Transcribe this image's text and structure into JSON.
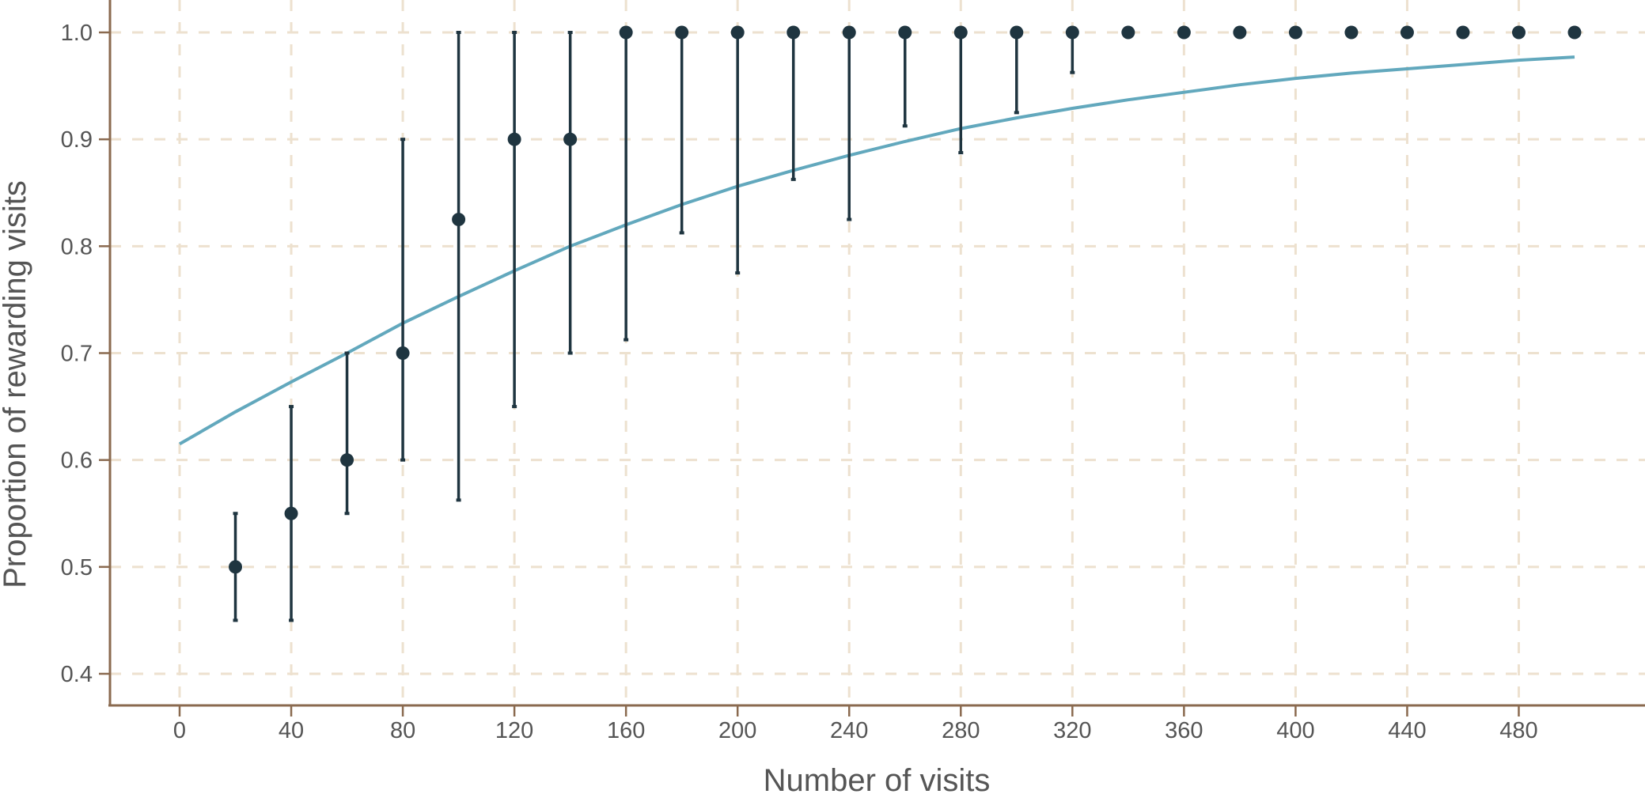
{
  "chart_data": {
    "type": "scatter",
    "title": "",
    "xlabel": "Number of visits",
    "ylabel": "Proportion of rewarding visits",
    "xlim": [
      -13,
      520
    ],
    "ylim": [
      0.37,
      1.0
    ],
    "x_ticks": [
      0,
      40,
      80,
      120,
      160,
      200,
      240,
      280,
      320,
      360,
      400,
      440,
      480
    ],
    "x_tick_labels": [
      "0",
      "40",
      "80",
      "120",
      "160",
      "200",
      "240",
      "280",
      "320",
      "360",
      "400",
      "440",
      "480"
    ],
    "y_ticks": [
      0.4,
      0.5,
      0.6,
      0.7,
      0.8,
      0.9,
      1.0
    ],
    "y_tick_labels": [
      "0.4",
      "0.5",
      "0.6",
      "0.7",
      "0.8",
      "0.9",
      "1.0"
    ],
    "grid": true,
    "legend": "none",
    "colors": {
      "points": "#1f3540",
      "fit": "#62a8bd",
      "grid": "#ede1cf",
      "axis": "#8a6a4f",
      "text": "#555555"
    },
    "points": [
      {
        "x": 20,
        "y": 0.5,
        "lower": 0.45,
        "upper": 0.55
      },
      {
        "x": 40,
        "y": 0.55,
        "lower": 0.45,
        "upper": 0.65
      },
      {
        "x": 60,
        "y": 0.6,
        "lower": 0.55,
        "upper": 0.7
      },
      {
        "x": 80,
        "y": 0.7,
        "lower": 0.6,
        "upper": 0.9
      },
      {
        "x": 100,
        "y": 0.825,
        "lower": 0.5625,
        "upper": 1.0
      },
      {
        "x": 120,
        "y": 0.9,
        "lower": 0.65,
        "upper": 1.0
      },
      {
        "x": 140,
        "y": 0.9,
        "lower": 0.7,
        "upper": 1.0
      },
      {
        "x": 160,
        "y": 1.0,
        "lower": 0.7125,
        "upper": 1.0
      },
      {
        "x": 180,
        "y": 1.0,
        "lower": 0.8125,
        "upper": 1.0
      },
      {
        "x": 200,
        "y": 1.0,
        "lower": 0.775,
        "upper": 1.0
      },
      {
        "x": 220,
        "y": 1.0,
        "lower": 0.8625,
        "upper": 1.0
      },
      {
        "x": 240,
        "y": 1.0,
        "lower": 0.825,
        "upper": 1.0
      },
      {
        "x": 260,
        "y": 1.0,
        "lower": 0.9125,
        "upper": 1.0
      },
      {
        "x": 280,
        "y": 1.0,
        "lower": 0.8875,
        "upper": 1.0
      },
      {
        "x": 300,
        "y": 1.0,
        "lower": 0.925,
        "upper": 1.0
      },
      {
        "x": 320,
        "y": 1.0,
        "lower": 0.9625,
        "upper": 1.0
      },
      {
        "x": 340,
        "y": 1.0,
        "lower": 1.0,
        "upper": 1.0
      },
      {
        "x": 360,
        "y": 1.0,
        "lower": 1.0,
        "upper": 1.0
      },
      {
        "x": 380,
        "y": 1.0,
        "lower": 1.0,
        "upper": 1.0
      },
      {
        "x": 400,
        "y": 1.0,
        "lower": 1.0,
        "upper": 1.0
      },
      {
        "x": 420,
        "y": 1.0,
        "lower": 1.0,
        "upper": 1.0
      },
      {
        "x": 440,
        "y": 1.0,
        "lower": 1.0,
        "upper": 1.0
      },
      {
        "x": 460,
        "y": 1.0,
        "lower": 1.0,
        "upper": 1.0
      },
      {
        "x": 480,
        "y": 1.0,
        "lower": 1.0,
        "upper": 1.0
      },
      {
        "x": 500,
        "y": 1.0,
        "lower": 1.0,
        "upper": 1.0
      }
    ],
    "fit_curve": {
      "x": [
        0,
        20,
        40,
        60,
        80,
        100,
        120,
        140,
        160,
        180,
        200,
        220,
        240,
        260,
        280,
        300,
        320,
        340,
        360,
        380,
        400,
        420,
        440,
        460,
        480,
        500
      ],
      "y": [
        0.615,
        0.645,
        0.673,
        0.7,
        0.728,
        0.753,
        0.777,
        0.8,
        0.82,
        0.839,
        0.856,
        0.871,
        0.885,
        0.898,
        0.91,
        0.92,
        0.929,
        0.937,
        0.944,
        0.951,
        0.957,
        0.962,
        0.966,
        0.97,
        0.974,
        0.977
      ]
    }
  }
}
